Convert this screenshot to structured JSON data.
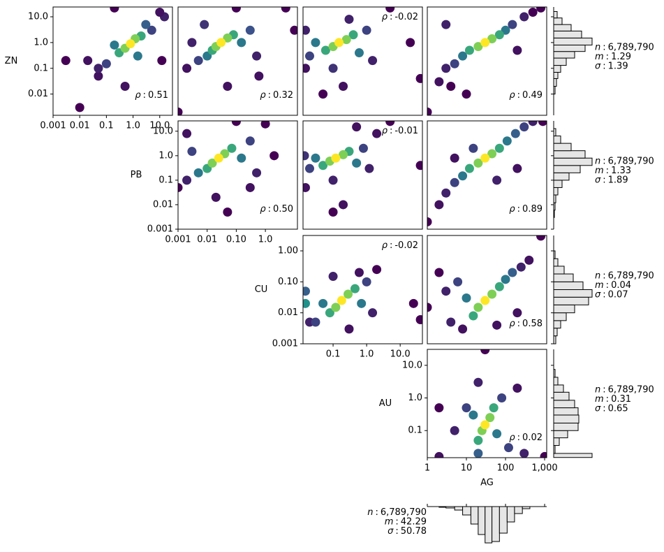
{
  "chart_data": {
    "type": "scatter",
    "colormap": [
      "#440154",
      "#3b528b",
      "#21918c",
      "#5ec962",
      "#fde725"
    ],
    "correlation_symbol": "ρ",
    "separator": ":",
    "x_label": "AG",
    "columns": [
      {
        "xlim": [
          0.001,
          30
        ],
        "xticks": [
          0.001,
          0.01,
          0.1,
          {
            "value": 1,
            "label": "1.0"
          },
          {
            "value": 10,
            "label": "10.0"
          }
        ]
      },
      {
        "xlim": [
          0.001,
          12.6
        ],
        "xticks": [
          0.001,
          0.01,
          {
            "value": 0.1,
            "label": "0.10"
          },
          {
            "value": 1,
            "label": "1.0"
          }
        ]
      },
      {
        "xlim": [
          0.0127,
          46
        ],
        "xticks": [
          0.1,
          {
            "value": 1,
            "label": "1.0"
          },
          {
            "value": 10,
            "label": "10.0"
          }
        ]
      },
      {
        "xlim": [
          1,
          1130
        ],
        "xticks": [
          1,
          10,
          100,
          {
            "value": 1000,
            "label": "1,000"
          }
        ]
      }
    ],
    "rows": [
      {
        "name": "ZN",
        "ylim": [
          0.0015,
          24
        ],
        "yticks": [
          0.01,
          0.1,
          {
            "value": 1,
            "label": "1.0"
          },
          {
            "value": 10,
            "label": "10.0"
          }
        ],
        "panels": [
          {
            "rho": 0.51,
            "x": [
              0.8,
              0.5,
              1.2,
              0.3,
              2,
              0.2,
              1.5,
              0.1,
              3,
              0.05,
              5,
              0.02,
              10,
              0.01,
              0.2,
              0.003,
              0.05,
              12,
              0.5,
              15
            ],
            "y": [
              0.9,
              0.6,
              1.4,
              0.4,
              1.8,
              0.8,
              0.3,
              0.15,
              5,
              0.1,
              3,
              0.2,
              15,
              0.003,
              22,
              0.2,
              0.05,
              0.2,
              0.02,
              10
            ],
            "density": [
              1,
              0.8,
              0.8,
              0.6,
              0.6,
              0.4,
              0.4,
              0.2,
              0.3,
              0.1,
              0.2,
              0.05,
              0.05,
              0,
              0,
              0,
              0.05,
              0,
              0.05,
              0.1
            ]
          },
          {
            "rho": 0.32,
            "x": [
              0.03,
              0.02,
              0.05,
              0.015,
              0.08,
              0.01,
              0.15,
              0.005,
              0.3,
              0.003,
              0.5,
              0.002,
              0.05,
              0.001,
              0.1,
              5,
              10,
              0.6,
              0.008
            ],
            "y": [
              1,
              0.7,
              1.5,
              0.5,
              2,
              0.3,
              1,
              0.2,
              3,
              1,
              0.3,
              0.1,
              0.02,
              0.002,
              22,
              22,
              3,
              0.05,
              5
            ],
            "density": [
              1,
              0.8,
              0.8,
              0.6,
              0.6,
              0.4,
              0.4,
              0.2,
              0.25,
              0.1,
              0.1,
              0.05,
              0.05,
              0,
              0,
              0,
              0,
              0.05,
              0.15
            ]
          },
          {
            "rho": -0.02,
            "x": [
              0.15,
              0.1,
              0.25,
              0.06,
              0.4,
              0.03,
              0.6,
              0.02,
              1,
              0.015,
              1.5,
              0.1,
              0.2,
              0.05,
              0.3,
              5,
              40,
              20,
              0.015
            ],
            "y": [
              1,
              0.7,
              1.3,
              0.5,
              2,
              1,
              0.4,
              0.3,
              3,
              3,
              0.2,
              0.1,
              0.02,
              0.01,
              8,
              22,
              0.04,
              1,
              0.1
            ],
            "density": [
              1,
              0.8,
              0.8,
              0.6,
              0.6,
              0.4,
              0.4,
              0.2,
              0.2,
              0.1,
              0.1,
              0.15,
              0.05,
              0,
              0.1,
              0,
              0,
              0,
              0.05
            ]
          },
          {
            "rho": 0.49,
            "x": [
              30,
              20,
              45,
              12,
              70,
              8,
              100,
              5,
              150,
              3,
              300,
              2,
              10,
              1,
              500,
              800,
              3,
              200,
              4
            ],
            "y": [
              1,
              0.7,
              1.4,
              0.5,
              2,
              0.3,
              3,
              0.15,
              5,
              0.1,
              10,
              0.03,
              0.01,
              0.002,
              15,
              22,
              5,
              0.5,
              0.02
            ],
            "density": [
              1,
              0.8,
              0.8,
              0.6,
              0.6,
              0.4,
              0.4,
              0.2,
              0.2,
              0.1,
              0.1,
              0.05,
              0,
              0,
              0,
              0,
              0.1,
              0.05,
              0
            ]
          }
        ],
        "histogram": {
          "bins": [
            0.01,
            0.02,
            0.04,
            0.07,
            0.13,
            0.25,
            0.45,
            0.8,
            1.5,
            2.8,
            5,
            9,
            16
          ],
          "counts": [
            2,
            4,
            6,
            10,
            18,
            30,
            45,
            55,
            40,
            25,
            12,
            5
          ],
          "stats": [
            {
              "symbol": "n",
              "value": 6789790,
              "value_label": "6,789,790"
            },
            {
              "symbol": "m",
              "value": 1.29
            },
            {
              "symbol": "σ",
              "value": 1.39
            }
          ]
        }
      },
      {
        "name": "PB",
        "ylim": [
          0.001,
          26.4
        ],
        "yticks": [
          0.001,
          0.01,
          0.1,
          {
            "value": 1,
            "label": "1.0"
          },
          {
            "value": 10,
            "label": "10.0"
          }
        ],
        "panels": [
          {
            "rho": 0.5,
            "rho_label": "0.50",
            "x": [
              0.025,
              0.015,
              0.04,
              0.01,
              0.07,
              0.005,
              0.15,
              0.003,
              0.3,
              0.002,
              0.5,
              0.02,
              0.05,
              0.001,
              0.1,
              2,
              1,
              0.002,
              0.3
            ],
            "y": [
              0.8,
              0.5,
              1.2,
              0.3,
              2,
              0.2,
              0.8,
              1.5,
              4,
              0.1,
              0.2,
              0.02,
              0.005,
              0.05,
              25,
              1,
              20,
              8,
              0.05
            ],
            "density": [
              1,
              0.8,
              0.8,
              0.6,
              0.6,
              0.4,
              0.4,
              0.2,
              0.2,
              0.1,
              0.1,
              0.05,
              0,
              0,
              0,
              0,
              0,
              0.05,
              0.05
            ]
          },
          {
            "rho": -0.01,
            "x": [
              0.12,
              0.08,
              0.2,
              0.05,
              0.3,
              0.03,
              0.5,
              0.02,
              0.8,
              0.014,
              1.2,
              0.1,
              0.2,
              0.1,
              0.5,
              5,
              40,
              2,
              0.015
            ],
            "y": [
              0.8,
              0.6,
              1.1,
              0.4,
              1.5,
              0.8,
              0.5,
              0.3,
              2,
              1,
              0.3,
              0.1,
              0.01,
              0.005,
              15,
              25,
              0.4,
              8,
              0.05
            ],
            "density": [
              1,
              0.8,
              0.8,
              0.6,
              0.6,
              0.4,
              0.4,
              0.2,
              0.2,
              0.15,
              0.1,
              0.1,
              0.05,
              0,
              0.05,
              0,
              0,
              0.05,
              0.05
            ]
          },
          {
            "rho": 0.89,
            "x": [
              30,
              20,
              45,
              12,
              70,
              8,
              110,
              5,
              180,
              3,
              300,
              2,
              1,
              500,
              900,
              15,
              60,
              5,
              200
            ],
            "y": [
              0.8,
              0.5,
              1.2,
              0.3,
              2,
              0.15,
              4,
              0.08,
              8,
              0.03,
              15,
              0.01,
              0.002,
              25,
              25,
              2,
              0.1,
              0.8,
              0.3
            ],
            "density": [
              1,
              0.8,
              0.8,
              0.6,
              0.6,
              0.4,
              0.4,
              0.2,
              0.3,
              0.1,
              0.2,
              0.05,
              0,
              0.1,
              0,
              0.2,
              0.1,
              0.05,
              0.05
            ]
          }
        ],
        "histogram": {
          "bins": [
            0.003,
            0.006,
            0.012,
            0.025,
            0.05,
            0.1,
            0.2,
            0.4,
            0.8,
            1.6,
            3.2,
            6.4,
            12.8
          ],
          "counts": [
            1,
            2,
            3,
            6,
            12,
            22,
            38,
            55,
            45,
            25,
            10,
            3
          ],
          "stats": [
            {
              "symbol": "n",
              "value": 6789790,
              "value_label": "6,789,790"
            },
            {
              "symbol": "m",
              "value": 1.33
            },
            {
              "symbol": "σ",
              "value": 1.89
            }
          ]
        }
      },
      {
        "name": "CU",
        "ylim": [
          0.001,
          3.14
        ],
        "yticks": [
          0.001,
          0.01,
          {
            "value": 0.1,
            "label": "0.10"
          },
          {
            "value": 1,
            "label": "1.00"
          }
        ],
        "panels": [
          {
            "rho": -0.02,
            "x": [
              0.18,
              0.12,
              0.28,
              0.08,
              0.45,
              0.05,
              0.7,
              0.03,
              1,
              0.015,
              1.5,
              0.02,
              0.3,
              0.1,
              0.6,
              2,
              40,
              25,
              0.015
            ],
            "y": [
              0.025,
              0.015,
              0.04,
              0.01,
              0.06,
              0.02,
              0.02,
              0.005,
              0.1,
              0.05,
              0.01,
              0.005,
              0.003,
              0.15,
              0.2,
              0.25,
              0.006,
              0.02,
              0.02
            ],
            "density": [
              1,
              0.8,
              0.8,
              0.6,
              0.6,
              0.4,
              0.4,
              0.2,
              0.2,
              0.3,
              0.1,
              0.1,
              0.05,
              0.1,
              0.05,
              0,
              0,
              0,
              0.5
            ]
          },
          {
            "rho": 0.58,
            "x": [
              30,
              20,
              45,
              15,
              70,
              10,
              100,
              6,
              150,
              3,
              250,
              4,
              60,
              2,
              400,
              800,
              1,
              200,
              8
            ],
            "y": [
              0.025,
              0.015,
              0.04,
              0.008,
              0.07,
              0.03,
              0.12,
              0.1,
              0.2,
              0.05,
              0.3,
              0.005,
              0.004,
              0.2,
              0.5,
              3,
              0.015,
              0.01,
              0.003
            ],
            "density": [
              1,
              0.8,
              0.8,
              0.6,
              0.6,
              0.4,
              0.4,
              0.2,
              0.3,
              0.1,
              0.1,
              0.1,
              0.05,
              0,
              0.05,
              0,
              0,
              0.05,
              0.05
            ]
          }
        ],
        "histogram": {
          "bins": [
            0.001,
            0.0018,
            0.0032,
            0.0056,
            0.01,
            0.018,
            0.032,
            0.056,
            0.1,
            0.18,
            0.32,
            0.56,
            1
          ],
          "counts": [
            3,
            5,
            10,
            18,
            30,
            50,
            55,
            42,
            28,
            15,
            6,
            2
          ],
          "stats": [
            {
              "symbol": "n",
              "value": 6789790,
              "value_label": "6,789,790"
            },
            {
              "symbol": "m",
              "value": 0.04
            },
            {
              "symbol": "σ",
              "value": 0.07
            }
          ]
        }
      },
      {
        "name": "AU",
        "ylim": [
          0.0148,
          30.8
        ],
        "yticks": [
          0.1,
          {
            "value": 1,
            "label": "1.0"
          },
          {
            "value": 10,
            "label": "10.0"
          }
        ],
        "panels": [
          {
            "rho": 0.02,
            "x": [
              30,
              25,
              40,
              20,
              50,
              15,
              60,
              20,
              80,
              10,
              120,
              5,
              300,
              2,
              20,
              30,
              1000,
              2,
              200
            ],
            "y": [
              0.15,
              0.1,
              0.25,
              0.05,
              0.5,
              0.3,
              0.08,
              0.02,
              1,
              0.5,
              0.03,
              0.1,
              0.02,
              0.016,
              3,
              30,
              0.016,
              0.5,
              2
            ],
            "density": [
              1,
              0.8,
              0.8,
              0.6,
              0.6,
              0.4,
              0.4,
              0.3,
              0.2,
              0.2,
              0.2,
              0.1,
              0.1,
              0.05,
              0.1,
              0,
              0,
              0,
              0.05
            ]
          }
        ],
        "histogram": {
          "bins": [
            0.015,
            0.02,
            0.035,
            0.06,
            0.1,
            0.17,
            0.3,
            0.5,
            0.85,
            1.5,
            2.5,
            4.3,
            7.5
          ],
          "counts": [
            55,
            2,
            8,
            20,
            35,
            36,
            35,
            30,
            22,
            14,
            6,
            2
          ],
          "stats": [
            {
              "symbol": "n",
              "value": 6789790,
              "value_label": "6,789,790"
            },
            {
              "symbol": "m",
              "value": 0.31
            },
            {
              "symbol": "σ",
              "value": 0.65
            }
          ]
        }
      }
    ],
    "x_histogram": {
      "bins": [
        2,
        3,
        5,
        8,
        13,
        20,
        30,
        45,
        70,
        110,
        170,
        270,
        420
      ],
      "counts": [
        1,
        2,
        5,
        12,
        25,
        40,
        52,
        50,
        38,
        22,
        10,
        3
      ],
      "stats": [
        {
          "symbol": "n",
          "value": 6789790,
          "value_label": "6,789,790"
        },
        {
          "symbol": "m",
          "value": 42.29
        },
        {
          "symbol": "σ",
          "value": 50.78
        }
      ]
    }
  }
}
